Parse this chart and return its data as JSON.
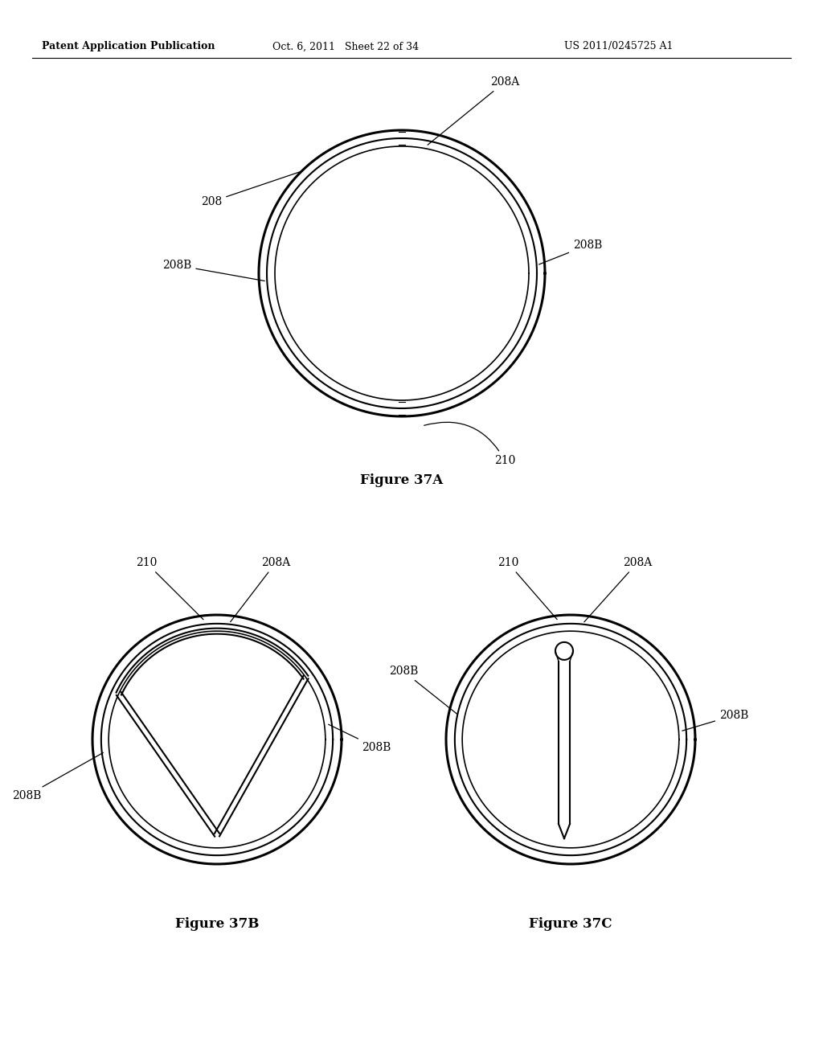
{
  "bg_color": "#ffffff",
  "line_color": "#000000",
  "header_left": "Patent Application Publication",
  "header_mid": "Oct. 6, 2011   Sheet 22 of 34",
  "header_right": "US 2011/0245725 A1",
  "fig37A_title": "Figure 37A",
  "fig37B_title": "Figure 37B",
  "fig37C_title": "Figure 37C"
}
